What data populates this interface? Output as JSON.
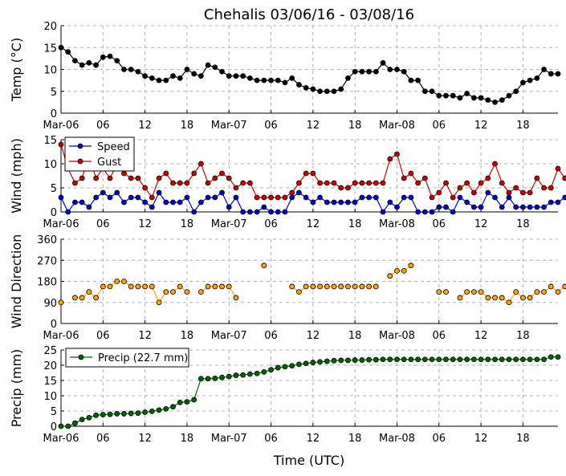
{
  "figure": {
    "title": "Chehalis 03/06/16 - 03/08/16",
    "xlabel": "Time (UTC)"
  },
  "chart_data": [
    {
      "type": "line",
      "ylabel": "Temp ($^\\circ$C)",
      "ylabel_display": "Temp (°C)",
      "x_ticks": [
        "Mar-06",
        "06",
        "12",
        "18",
        "Mar-07",
        "06",
        "12",
        "18",
        "Mar-08",
        "06",
        "12",
        "18"
      ],
      "x_range_hours": [
        0,
        71
      ],
      "ylim": [
        0,
        20
      ],
      "yticks": [
        0,
        5,
        10,
        15,
        20
      ],
      "grid": true,
      "series": [
        {
          "color": "#000000",
          "values": [
            15,
            14,
            12,
            11,
            11.5,
            11,
            12.8,
            13,
            12,
            10,
            10,
            9.5,
            8.5,
            8,
            7.5,
            7.5,
            8.5,
            8,
            10,
            9,
            8.5,
            11,
            10.5,
            9.5,
            8.5,
            8.5,
            8.5,
            8,
            7.5,
            7.5,
            7.5,
            7.5,
            7,
            8,
            6.5,
            5.8,
            5.5,
            5,
            5,
            5,
            5.5,
            8,
            9.5,
            9.5,
            9.5,
            9.5,
            11.5,
            10,
            10,
            9.5,
            7.5,
            7.5,
            5,
            5,
            4,
            4,
            4,
            3.5,
            4.5,
            3.5,
            3.5,
            3,
            2.5,
            3,
            4,
            5,
            7,
            7.5,
            8,
            10,
            9,
            9
          ]
        }
      ]
    },
    {
      "type": "line",
      "ylabel": "Wind (mph)",
      "x_ticks": [
        "Mar-06",
        "06",
        "12",
        "18",
        "Mar-07",
        "06",
        "12",
        "18",
        "Mar-08",
        "06",
        "12",
        "18"
      ],
      "x_range_hours": [
        0,
        71
      ],
      "ylim": [
        0,
        15
      ],
      "yticks": [
        0,
        5,
        10,
        15
      ],
      "grid": true,
      "legend": "top-left",
      "series": [
        {
          "name": "Speed",
          "color": "#0000cc",
          "values": [
            3,
            0,
            2,
            2,
            1,
            3,
            4,
            3,
            4,
            2,
            3,
            3,
            2,
            1,
            4,
            2,
            2,
            2,
            3,
            0,
            2,
            3,
            3,
            4,
            1,
            3,
            0,
            0,
            0,
            1,
            0,
            0,
            0,
            3,
            4,
            3,
            2,
            3,
            2,
            2,
            2,
            2,
            2,
            3,
            3,
            3,
            0,
            2,
            1,
            3,
            3,
            0,
            0,
            0,
            1,
            1,
            0,
            3,
            2,
            1,
            1,
            4,
            3,
            1,
            3,
            1,
            1,
            1,
            1,
            1,
            2,
            2,
            3
          ]
        },
        {
          "name": "Gust",
          "color": "#cc0000",
          "values": [
            14,
            9,
            6,
            7,
            12,
            7,
            9,
            7,
            10,
            8,
            7,
            7,
            5,
            3,
            7,
            8,
            6,
            6,
            6,
            8,
            10,
            6,
            7,
            8,
            7,
            5,
            6,
            6,
            3,
            3,
            3,
            3,
            3,
            4,
            6,
            8,
            8,
            6,
            6,
            6,
            5,
            5,
            6,
            6,
            6,
            6,
            6,
            11,
            12,
            7,
            8,
            6,
            7,
            3,
            4,
            6,
            3,
            5,
            6,
            4,
            6,
            7,
            10,
            6,
            4,
            5,
            4,
            4,
            7,
            5,
            5,
            9,
            7
          ]
        }
      ]
    },
    {
      "type": "scatter",
      "ylabel": "Wind Direction",
      "x_ticks": [
        "Mar-06",
        "06",
        "12",
        "18",
        "Mar-07",
        "06",
        "12",
        "18",
        "Mar-08",
        "06",
        "12",
        "18"
      ],
      "x_range_hours": [
        0,
        71
      ],
      "ylim": [
        0,
        360
      ],
      "yticks": [
        0,
        90,
        180,
        270,
        360
      ],
      "grid": true,
      "series": [
        {
          "color": "#ffa500",
          "values": [
            90,
            null,
            110,
            110,
            135,
            110,
            158,
            158,
            180,
            180,
            158,
            158,
            158,
            158,
            90,
            135,
            135,
            158,
            135,
            null,
            135,
            158,
            158,
            158,
            158,
            110,
            null,
            null,
            null,
            248,
            null,
            null,
            null,
            158,
            135,
            158,
            158,
            158,
            158,
            158,
            158,
            158,
            158,
            158,
            158,
            158,
            null,
            203,
            225,
            225,
            248,
            null,
            null,
            null,
            135,
            135,
            null,
            110,
            135,
            135,
            135,
            110,
            110,
            110,
            90,
            135,
            110,
            110,
            135,
            135,
            158,
            135,
            158
          ]
        }
      ]
    },
    {
      "type": "line",
      "ylabel": "Precip (mm)",
      "x_ticks": [
        "Mar-06",
        "06",
        "12",
        "18",
        "Mar-07",
        "06",
        "12",
        "18",
        "Mar-08",
        "06",
        "12",
        "18"
      ],
      "x_range_hours": [
        0,
        71
      ],
      "ylim": [
        0,
        25
      ],
      "yticks": [
        0,
        5,
        10,
        15,
        20,
        25
      ],
      "grid": true,
      "legend": "top-left",
      "series": [
        {
          "name": "Precip (22.7 mm)",
          "color": "#006400",
          "values": [
            0,
            0,
            1,
            2.2,
            2.8,
            3.6,
            3.8,
            3.9,
            4.1,
            4.1,
            4.2,
            4.3,
            4.6,
            4.9,
            5.3,
            5.7,
            6.4,
            7.8,
            8,
            8.7,
            15.6,
            15.6,
            15.7,
            16,
            16.3,
            16.7,
            16.8,
            17.1,
            17.3,
            17.8,
            18.5,
            19.2,
            19.5,
            19.8,
            20.3,
            20.6,
            20.9,
            21.1,
            21.3,
            21.5,
            21.6,
            21.6,
            21.7,
            21.7,
            21.8,
            21.8,
            21.9,
            21.9,
            21.9,
            21.9,
            21.9,
            21.9,
            21.9,
            21.9,
            21.9,
            21.9,
            21.9,
            21.9,
            21.9,
            21.9,
            21.9,
            21.9,
            21.9,
            21.9,
            21.9,
            21.9,
            21.9,
            21.9,
            21.9,
            21.9,
            22.7,
            22.7
          ]
        }
      ]
    }
  ]
}
